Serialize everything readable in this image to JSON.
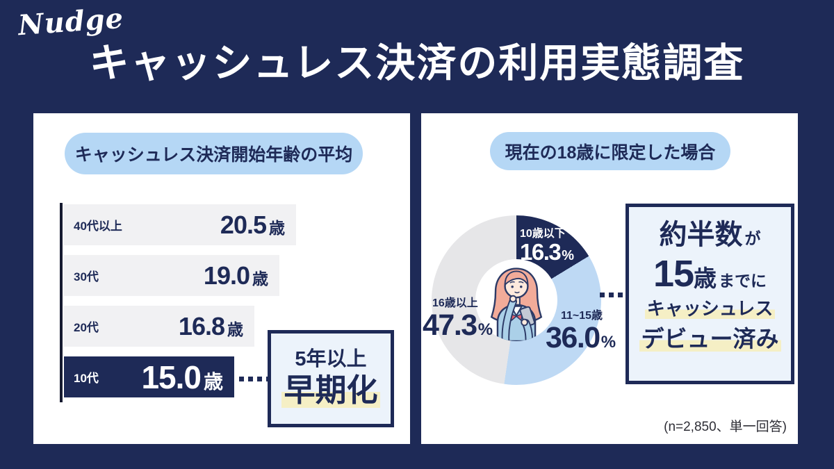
{
  "brand": {
    "logo": "Nudge"
  },
  "title": "キャッシュレス決済の利用実態調査",
  "colors": {
    "background_navy": "#1e2a57",
    "panel_white": "#ffffff",
    "pill_blue": "#b5d7f5",
    "bar_gray": "#f1f1f3",
    "highlight_navy": "#1e2a57",
    "callout_bg": "#ecf3fb",
    "accent_yellow": "#f5efc5",
    "donut_blue": "#bed9f4",
    "donut_gray": "#e6e6e8"
  },
  "chart_data": [
    {
      "type": "bar",
      "title": "キャッシュレス決済開始年齢の平均",
      "orientation": "horizontal",
      "categories": [
        "40代以上",
        "30代",
        "20代",
        "10代"
      ],
      "values": [
        20.5,
        19.0,
        16.8,
        15.0
      ],
      "value_labels": [
        "20.5",
        "19.0",
        "16.8",
        "15.0"
      ],
      "unit": "歳",
      "highlight_category": "10代",
      "annotation_lines": [
        "5年以上",
        "早期化"
      ]
    },
    {
      "type": "donut",
      "title": "現在の18歳に限定した場合",
      "start_angle_deg": 0,
      "direction": "clockwise",
      "slices": [
        {
          "label": "10歳以下",
          "value": 16.3,
          "value_label": "16.3",
          "unit": "%",
          "color": "#1e2a57",
          "label_color": "#ffffff"
        },
        {
          "label": "11~15歳",
          "value": 36.0,
          "value_label": "36.0",
          "unit": "%",
          "color": "#bed9f4",
          "label_color": "#1e2a57"
        },
        {
          "label": "16歳以上",
          "value": 47.3,
          "value_label": "47.3",
          "unit": "%",
          "color": "#e6e6e8",
          "label_color": "#1e2a57"
        }
      ],
      "annotation_parts": {
        "p1": "約半数",
        "p2": "が",
        "p3": "15",
        "p4": "歳",
        "p5": "までに",
        "p6": "キャッシュレス",
        "p7": "デビュー済み"
      },
      "note": "(n=2,850、単一回答)"
    }
  ]
}
